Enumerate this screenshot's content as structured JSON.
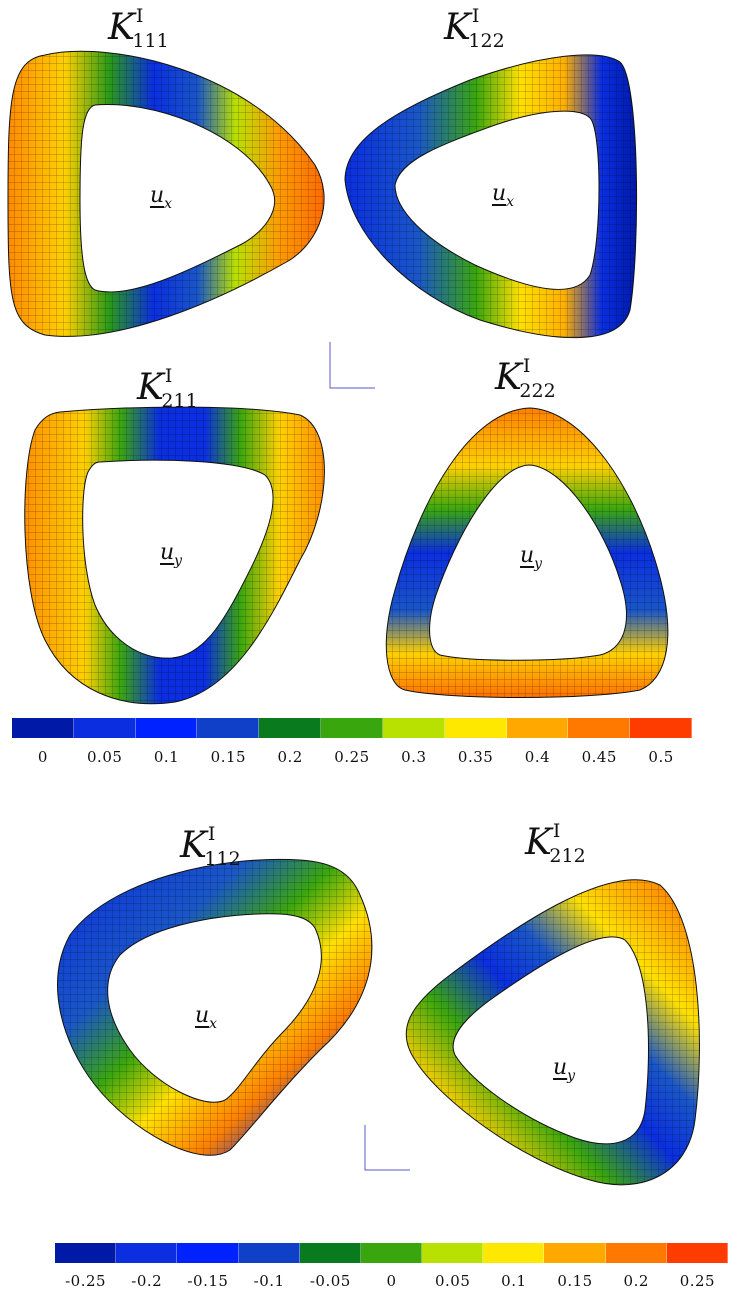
{
  "panels": [
    {
      "id": "k111",
      "title_sym": "K",
      "title_sup": "I",
      "title_sub": "111",
      "field_sym": "u",
      "field_sub": "x"
    },
    {
      "id": "k122",
      "title_sym": "K",
      "title_sup": "I",
      "title_sub": "122",
      "field_sym": "u",
      "field_sub": "x"
    },
    {
      "id": "k211",
      "title_sym": "K",
      "title_sup": "I",
      "title_sub": "211",
      "field_sym": "u",
      "field_sub": "y"
    },
    {
      "id": "k222",
      "title_sym": "K",
      "title_sup": "I",
      "title_sub": "222",
      "field_sym": "u",
      "field_sub": "y"
    },
    {
      "id": "k112",
      "title_sym": "K",
      "title_sup": "I",
      "title_sub": "112",
      "field_sym": "u",
      "field_sub": "x"
    },
    {
      "id": "k212",
      "title_sym": "K",
      "title_sup": "I",
      "title_sub": "212",
      "field_sym": "u",
      "field_sub": "y"
    }
  ],
  "colorbars": [
    {
      "id": "top",
      "colors": [
        "#001aa8",
        "#0a2ee0",
        "#0022ff",
        "#1040c8",
        "#0a7a1e",
        "#3aa60e",
        "#b8e000",
        "#ffe800",
        "#ffa800",
        "#ff7800",
        "#ff3c00"
      ],
      "ticks": [
        "0",
        "0.05",
        "0.1",
        "0.15",
        "0.2",
        "0.25",
        "0.3",
        "0.35",
        "0.4",
        "0.45",
        "0.5"
      ]
    },
    {
      "id": "bottom",
      "colors": [
        "#001aa8",
        "#0a2ee0",
        "#0022ff",
        "#1040c8",
        "#0a7a1e",
        "#3aa60e",
        "#b8e000",
        "#ffe800",
        "#ffa800",
        "#ff7800",
        "#ff3c00"
      ],
      "ticks": [
        "-0.25",
        "-0.2",
        "-0.15",
        "-0.1",
        "-0.05",
        "0",
        "0.05",
        "0.1",
        "0.15",
        "0.2",
        "0.25"
      ]
    }
  ]
}
